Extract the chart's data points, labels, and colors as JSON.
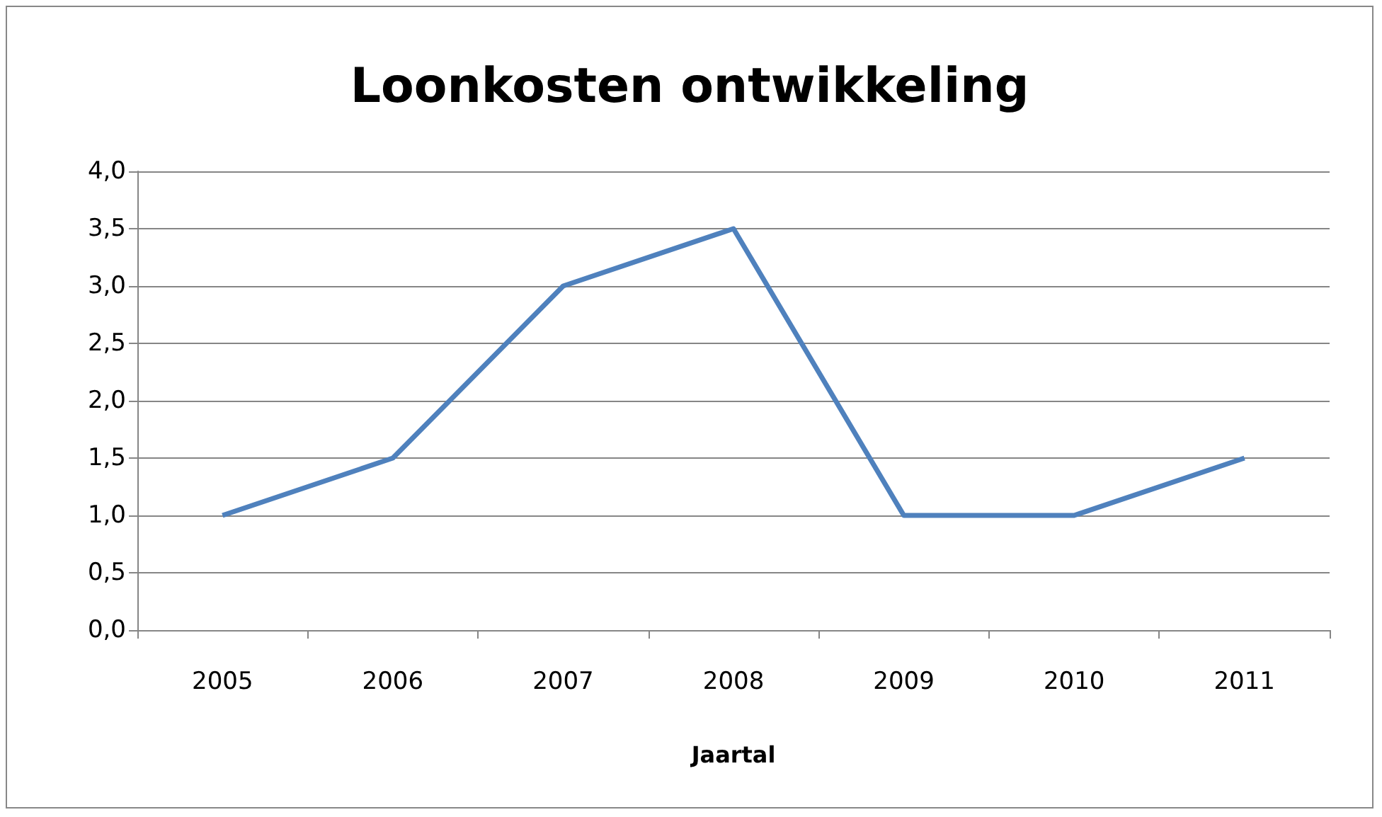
{
  "chart_data": {
    "type": "line",
    "title": "Loonkosten ontwikkeling",
    "xlabel": "Jaartal",
    "categories": [
      "2005",
      "2006",
      "2007",
      "2008",
      "2009",
      "2010",
      "2011"
    ],
    "series": [
      {
        "color": "#4f81bd",
        "values": [
          1.0,
          1.5,
          3.0,
          3.5,
          1.0,
          1.0,
          1.5
        ]
      }
    ],
    "ylim": [
      0,
      4
    ],
    "yticks": [
      {
        "value": 0,
        "label": "0,0"
      },
      {
        "value": 0.5,
        "label": "0,5"
      },
      {
        "value": 1,
        "label": "1,0"
      },
      {
        "value": 1.5,
        "label": "1,5"
      },
      {
        "value": 2,
        "label": "2,0"
      },
      {
        "value": 2.5,
        "label": "2,5"
      },
      {
        "value": 3,
        "label": "3,0"
      },
      {
        "value": 3.5,
        "label": "3,5"
      },
      {
        "value": 4,
        "label": "4,0"
      }
    ],
    "grid": "y",
    "marker": "none",
    "line_style": "solid"
  }
}
